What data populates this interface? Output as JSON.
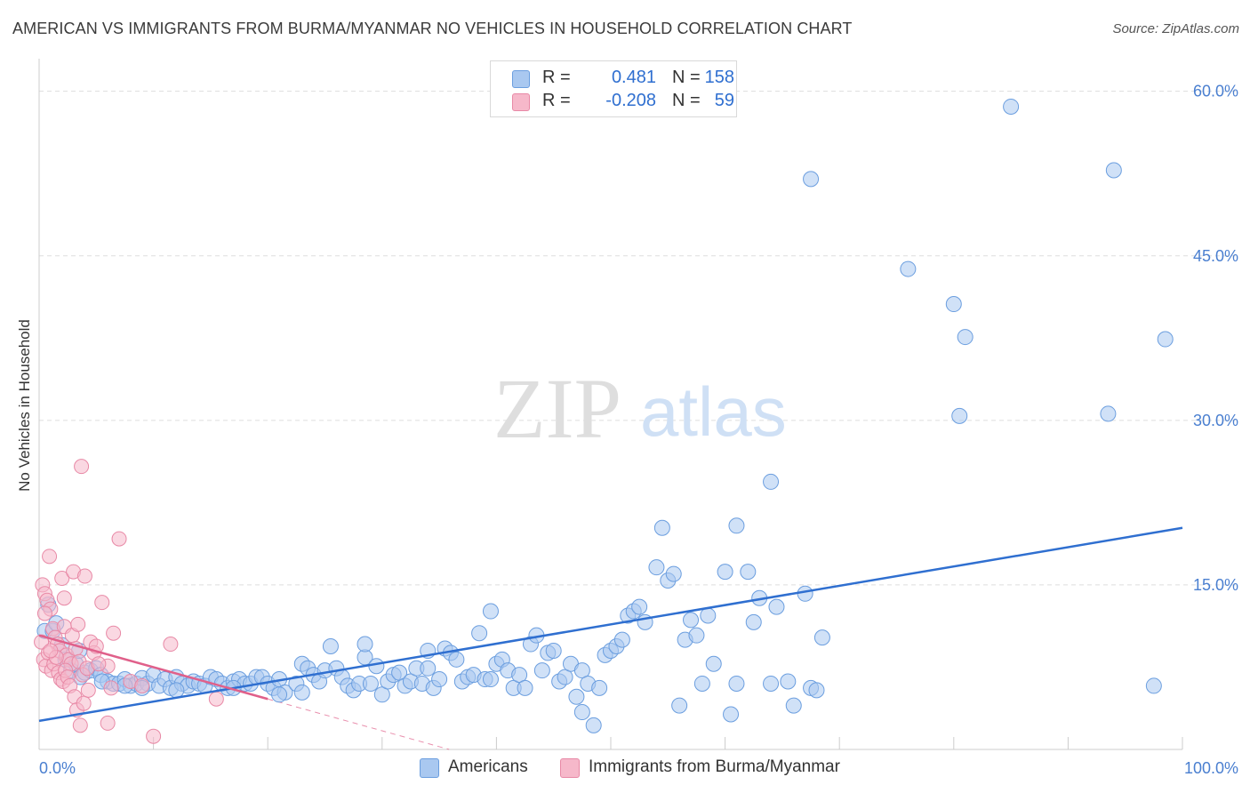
{
  "title": "AMERICAN VS IMMIGRANTS FROM BURMA/MYANMAR NO VEHICLES IN HOUSEHOLD CORRELATION CHART",
  "source": "Source: ZipAtlas.com",
  "watermark": {
    "zip": "ZIP",
    "atlas": "atlas"
  },
  "legend": {
    "americans": {
      "r_label": "R =",
      "r_value": "0.481",
      "n_label": "N =",
      "n_value": "158"
    },
    "immigrants": {
      "r_label": "R =",
      "r_value": "-0.208",
      "n_label": "N =",
      "n_value": "59"
    }
  },
  "bottom_legend": {
    "americans": "Americans",
    "immigrants": "Immigrants from Burma/Myanmar"
  },
  "colors": {
    "americans_fill": "#a9c8f0",
    "americans_stroke": "#6b9edf",
    "americans_line": "#2f6fd0",
    "immigrants_fill": "#f6b8ca",
    "immigrants_stroke": "#e889a6",
    "immigrants_line": "#e0608a",
    "grid": "#dddddd",
    "tick_text": "#4a7fd0"
  },
  "chart_data": {
    "type": "scatter",
    "title": "AMERICAN VS IMMIGRANTS FROM BURMA/MYANMAR NO VEHICLES IN HOUSEHOLD CORRELATION CHART",
    "xlabel": "",
    "ylabel": "No Vehicles in Household",
    "xlim": [
      0,
      100
    ],
    "ylim": [
      0,
      62
    ],
    "x_tick_labels": [
      "0.0%",
      "100.0%"
    ],
    "y_ticks": [
      15,
      30,
      45,
      60
    ],
    "y_tick_labels": [
      "15.0%",
      "30.0%",
      "45.0%",
      "60.0%"
    ],
    "series": [
      {
        "name": "Americans",
        "r": 0.481,
        "n": 158,
        "trend": {
          "x": [
            0,
            100
          ],
          "y": [
            2.6,
            20.2
          ]
        },
        "points": [
          [
            0.5,
            10.8
          ],
          [
            0.8,
            13.2
          ],
          [
            1.2,
            10.8
          ],
          [
            1.5,
            11.5
          ],
          [
            2.0,
            9.5
          ],
          [
            2.3,
            8.2
          ],
          [
            2.8,
            7.2
          ],
          [
            3.2,
            7.8
          ],
          [
            3.6,
            6.6
          ],
          [
            4.0,
            7.0
          ],
          [
            4.5,
            7.2
          ],
          [
            5.0,
            7.4
          ],
          [
            5.4,
            6.8
          ],
          [
            6.0,
            6.2
          ],
          [
            6.5,
            6.0
          ],
          [
            7.0,
            6.0
          ],
          [
            7.5,
            6.4
          ],
          [
            8.0,
            5.8
          ],
          [
            8.5,
            6.0
          ],
          [
            9.0,
            6.5
          ],
          [
            9.5,
            6.0
          ],
          [
            10.0,
            6.8
          ],
          [
            10.5,
            5.8
          ],
          [
            11.0,
            6.4
          ],
          [
            11.5,
            5.6
          ],
          [
            12.0,
            6.6
          ],
          [
            12.5,
            6.0
          ],
          [
            13.0,
            5.8
          ],
          [
            13.5,
            6.2
          ],
          [
            14.0,
            6.0
          ],
          [
            14.5,
            5.8
          ],
          [
            15.0,
            6.6
          ],
          [
            15.5,
            6.4
          ],
          [
            16.0,
            6.0
          ],
          [
            16.5,
            5.6
          ],
          [
            17.0,
            6.2
          ],
          [
            17.5,
            6.4
          ],
          [
            18.0,
            6.0
          ],
          [
            18.5,
            6.0
          ],
          [
            19.0,
            6.6
          ],
          [
            19.5,
            6.6
          ],
          [
            20.0,
            6.0
          ],
          [
            20.5,
            5.6
          ],
          [
            21.0,
            6.4
          ],
          [
            21.5,
            5.2
          ],
          [
            22.5,
            6.0
          ],
          [
            23.0,
            7.8
          ],
          [
            23.5,
            7.4
          ],
          [
            24.0,
            6.8
          ],
          [
            24.5,
            6.2
          ],
          [
            25.0,
            7.2
          ],
          [
            25.5,
            9.4
          ],
          [
            26.0,
            7.4
          ],
          [
            26.5,
            6.6
          ],
          [
            27.0,
            5.8
          ],
          [
            27.5,
            5.4
          ],
          [
            28.0,
            6.0
          ],
          [
            28.5,
            8.4
          ],
          [
            29.0,
            6.0
          ],
          [
            29.5,
            7.6
          ],
          [
            30.0,
            5.0
          ],
          [
            30.5,
            6.2
          ],
          [
            31.0,
            6.8
          ],
          [
            31.5,
            7.0
          ],
          [
            32.0,
            5.8
          ],
          [
            32.5,
            6.2
          ],
          [
            33.0,
            7.4
          ],
          [
            33.5,
            6.0
          ],
          [
            34.0,
            7.4
          ],
          [
            34.5,
            5.6
          ],
          [
            35.0,
            6.4
          ],
          [
            35.5,
            9.2
          ],
          [
            36.0,
            8.8
          ],
          [
            36.5,
            8.2
          ],
          [
            37.0,
            6.2
          ],
          [
            37.5,
            6.6
          ],
          [
            38.0,
            6.8
          ],
          [
            38.5,
            10.6
          ],
          [
            39.0,
            6.4
          ],
          [
            39.5,
            6.4
          ],
          [
            40.0,
            7.8
          ],
          [
            40.5,
            8.2
          ],
          [
            41.0,
            7.2
          ],
          [
            41.5,
            5.6
          ],
          [
            42.0,
            6.8
          ],
          [
            42.5,
            5.6
          ],
          [
            43.0,
            9.6
          ],
          [
            43.5,
            10.4
          ],
          [
            44.0,
            7.2
          ],
          [
            44.5,
            8.8
          ],
          [
            45.0,
            9.0
          ],
          [
            45.5,
            6.2
          ],
          [
            46.0,
            6.6
          ],
          [
            46.5,
            7.8
          ],
          [
            47.0,
            4.8
          ],
          [
            47.5,
            7.2
          ],
          [
            48.0,
            6.0
          ],
          [
            48.5,
            2.2
          ],
          [
            49.0,
            5.6
          ],
          [
            49.5,
            8.6
          ],
          [
            50.0,
            9.0
          ],
          [
            50.5,
            9.4
          ],
          [
            51.0,
            10.0
          ],
          [
            51.5,
            12.2
          ],
          [
            52.0,
            12.6
          ],
          [
            52.5,
            13.0
          ],
          [
            53.0,
            11.6
          ],
          [
            54.0,
            16.6
          ],
          [
            54.5,
            20.2
          ],
          [
            55.0,
            15.4
          ],
          [
            55.5,
            16.0
          ],
          [
            56.0,
            4.0
          ],
          [
            56.5,
            10.0
          ],
          [
            57.0,
            11.8
          ],
          [
            57.5,
            10.4
          ],
          [
            58.0,
            6.0
          ],
          [
            58.5,
            12.2
          ],
          [
            59.0,
            7.8
          ],
          [
            60.0,
            16.2
          ],
          [
            60.5,
            3.2
          ],
          [
            61.0,
            6.0
          ],
          [
            62.0,
            16.2
          ],
          [
            62.5,
            11.6
          ],
          [
            63.0,
            13.8
          ],
          [
            64.0,
            6.0
          ],
          [
            64.5,
            13.0
          ],
          [
            65.5,
            6.2
          ],
          [
            66.0,
            4.0
          ],
          [
            67.0,
            14.2
          ],
          [
            67.5,
            5.6
          ],
          [
            68.0,
            5.4
          ],
          [
            68.5,
            10.2
          ],
          [
            39.5,
            12.6
          ],
          [
            47.5,
            3.4
          ],
          [
            28.5,
            9.6
          ],
          [
            34.0,
            9.0
          ],
          [
            23.0,
            5.2
          ],
          [
            21.0,
            5.0
          ],
          [
            17.0,
            5.6
          ],
          [
            12.0,
            5.4
          ],
          [
            9.0,
            5.6
          ],
          [
            7.5,
            5.8
          ],
          [
            5.5,
            6.2
          ],
          [
            3.5,
            9.0
          ],
          [
            64.0,
            24.4
          ],
          [
            61.0,
            20.4
          ],
          [
            67.5,
            52.0
          ],
          [
            76.0,
            43.8
          ],
          [
            80.0,
            40.6
          ],
          [
            81.0,
            37.6
          ],
          [
            80.5,
            30.4
          ],
          [
            85.0,
            58.6
          ],
          [
            94.0,
            52.8
          ],
          [
            98.5,
            37.4
          ],
          [
            93.5,
            30.6
          ],
          [
            97.5,
            5.8
          ]
        ]
      },
      {
        "name": "Immigrants from Burma/Myanmar",
        "r": -0.208,
        "n": 59,
        "trend": {
          "x": [
            0,
            20
          ],
          "y": [
            10.4,
            4.6
          ]
        },
        "points": [
          [
            0.3,
            15.0
          ],
          [
            0.5,
            14.2
          ],
          [
            0.7,
            13.6
          ],
          [
            0.9,
            17.6
          ],
          [
            1.0,
            12.8
          ],
          [
            1.2,
            11.0
          ],
          [
            1.4,
            10.2
          ],
          [
            1.6,
            9.6
          ],
          [
            1.8,
            9.0
          ],
          [
            2.0,
            15.6
          ],
          [
            2.2,
            11.2
          ],
          [
            2.4,
            8.6
          ],
          [
            2.6,
            8.2
          ],
          [
            2.8,
            7.8
          ],
          [
            3.0,
            16.2
          ],
          [
            3.2,
            9.2
          ],
          [
            3.5,
            8.0
          ],
          [
            3.8,
            6.8
          ],
          [
            4.0,
            15.8
          ],
          [
            4.2,
            7.4
          ],
          [
            4.5,
            9.8
          ],
          [
            4.8,
            8.8
          ],
          [
            5.0,
            9.4
          ],
          [
            5.5,
            13.4
          ],
          [
            6.0,
            7.6
          ],
          [
            6.5,
            10.6
          ],
          [
            7.0,
            19.2
          ],
          [
            8.0,
            6.2
          ],
          [
            9.0,
            5.8
          ],
          [
            10.0,
            1.2
          ],
          [
            11.5,
            9.6
          ],
          [
            15.5,
            4.6
          ],
          [
            0.4,
            8.2
          ],
          [
            0.6,
            7.6
          ],
          [
            0.8,
            8.8
          ],
          [
            1.1,
            7.2
          ],
          [
            1.3,
            7.8
          ],
          [
            1.5,
            8.4
          ],
          [
            1.7,
            7.0
          ],
          [
            1.9,
            6.4
          ],
          [
            2.1,
            6.2
          ],
          [
            2.3,
            7.2
          ],
          [
            2.5,
            6.6
          ],
          [
            2.7,
            5.8
          ],
          [
            2.9,
            10.4
          ],
          [
            3.1,
            4.8
          ],
          [
            3.3,
            3.6
          ],
          [
            3.6,
            2.2
          ],
          [
            3.9,
            4.2
          ],
          [
            4.3,
            5.4
          ],
          [
            5.2,
            7.8
          ],
          [
            6.3,
            5.6
          ],
          [
            3.7,
            25.8
          ],
          [
            2.2,
            13.8
          ],
          [
            0.2,
            9.8
          ],
          [
            0.5,
            12.4
          ],
          [
            1.0,
            9.0
          ],
          [
            6.0,
            2.4
          ],
          [
            3.4,
            11.4
          ]
        ]
      }
    ]
  }
}
